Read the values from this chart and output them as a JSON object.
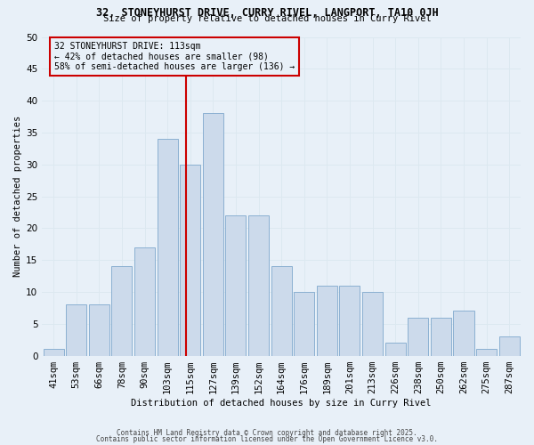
{
  "title_line1": "32, STONEYHURST DRIVE, CURRY RIVEL, LANGPORT, TA10 0JH",
  "title_line2": "Size of property relative to detached houses in Curry Rivel",
  "xlabel": "Distribution of detached houses by size in Curry Rivel",
  "ylabel": "Number of detached properties",
  "footer_line1": "Contains HM Land Registry data © Crown copyright and database right 2025.",
  "footer_line2": "Contains public sector information licensed under the Open Government Licence v3.0.",
  "categories": [
    "41sqm",
    "53sqm",
    "66sqm",
    "78sqm",
    "90sqm",
    "103sqm",
    "115sqm",
    "127sqm",
    "139sqm",
    "152sqm",
    "164sqm",
    "176sqm",
    "189sqm",
    "201sqm",
    "213sqm",
    "226sqm",
    "238sqm",
    "250sqm",
    "262sqm",
    "275sqm",
    "287sqm"
  ],
  "bar_heights": [
    1,
    8,
    8,
    14,
    17,
    34,
    30,
    38,
    22,
    22,
    14,
    10,
    11,
    11,
    10,
    2,
    6,
    6,
    7,
    1,
    3
  ],
  "bar_color": "#ccdaeb",
  "bar_edge_color": "#7fa8cc",
  "grid_color": "#dce8f0",
  "vline_color": "#cc0000",
  "annotation_text": "32 STONEYHURST DRIVE: 113sqm\n← 42% of detached houses are smaller (98)\n58% of semi-detached houses are larger (136) →",
  "annotation_box_color": "#cc0000",
  "ylim": [
    0,
    50
  ],
  "yticks": [
    0,
    5,
    10,
    15,
    20,
    25,
    30,
    35,
    40,
    45,
    50
  ],
  "background_color": "#e8f0f8"
}
